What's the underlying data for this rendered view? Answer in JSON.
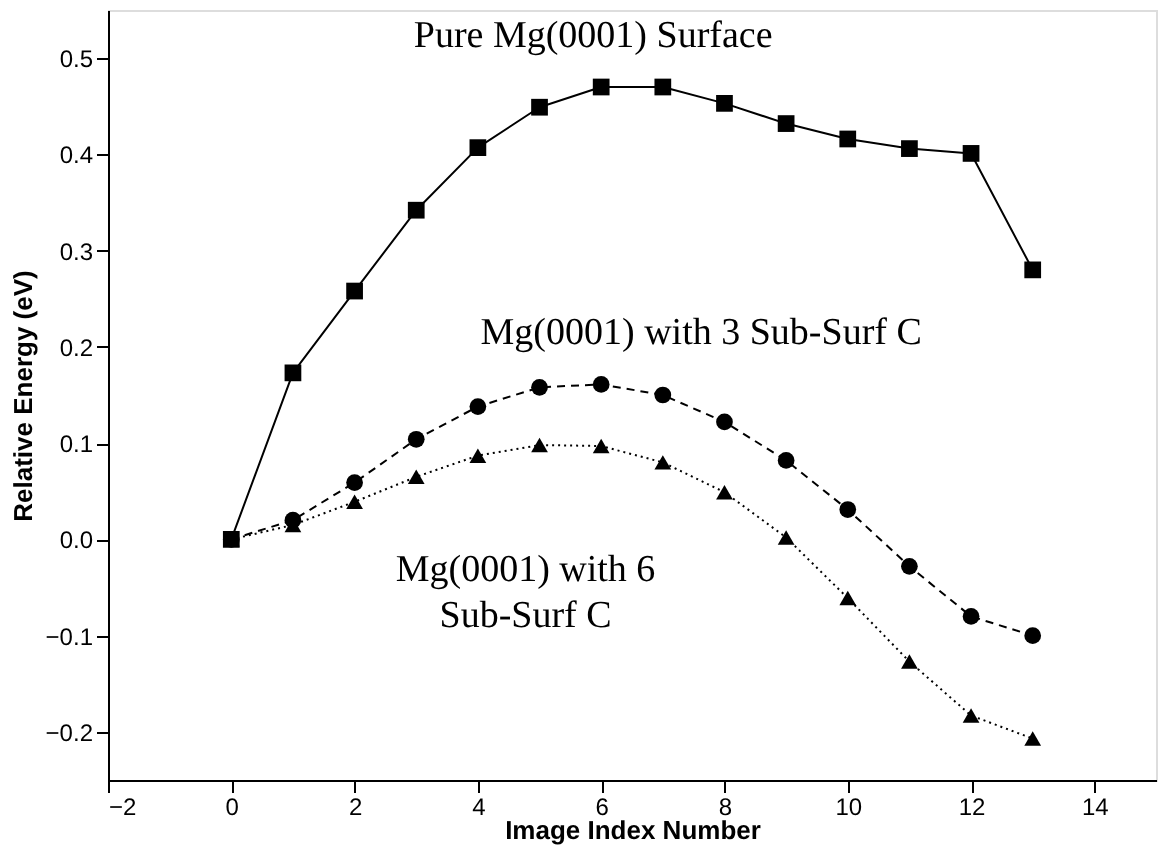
{
  "chart_data": {
    "type": "line",
    "xlabel": "Image Index Number",
    "ylabel": "Relative Energy (eV)",
    "x": [
      0,
      1,
      2,
      3,
      4,
      5,
      6,
      7,
      8,
      9,
      10,
      11,
      12,
      13
    ],
    "xlim": [
      -2,
      15
    ],
    "xticks": [
      -2,
      0,
      2,
      4,
      6,
      8,
      10,
      12,
      14
    ],
    "ylim": [
      -0.25,
      0.55
    ],
    "yticks": [
      -0.2,
      -0.1,
      {
        "value": 0,
        "label": "0.0"
      },
      0.1,
      0.2,
      0.3,
      0.4,
      0.5
    ],
    "grid": false,
    "series": [
      {
        "name": "Pure Mg(0001) Surface",
        "color": "#000000",
        "marker": "square",
        "line_style": "solid",
        "values": [
          0,
          0.173,
          0.258,
          0.342,
          0.407,
          0.449,
          0.47,
          0.47,
          0.453,
          0.432,
          0.416,
          0.406,
          0.401,
          0.28
        ]
      },
      {
        "name": "Mg(0001) with 3 Sub-Surf C",
        "color": "#000000",
        "marker": "circle",
        "line_style": "dashed",
        "values": [
          0,
          0.02,
          0.059,
          0.104,
          0.138,
          0.158,
          0.161,
          0.15,
          0.122,
          0.082,
          0.031,
          -0.028,
          -0.08,
          -0.1
        ]
      },
      {
        "name": "Mg(0001) with 6\nSub-Surf C",
        "color": "#000000",
        "marker": "triangle",
        "line_style": "dotted",
        "values": [
          0,
          0.015,
          0.039,
          0.065,
          0.087,
          0.098,
          0.097,
          0.08,
          0.049,
          0.002,
          -0.061,
          -0.127,
          -0.183,
          -0.207
        ]
      }
    ]
  }
}
